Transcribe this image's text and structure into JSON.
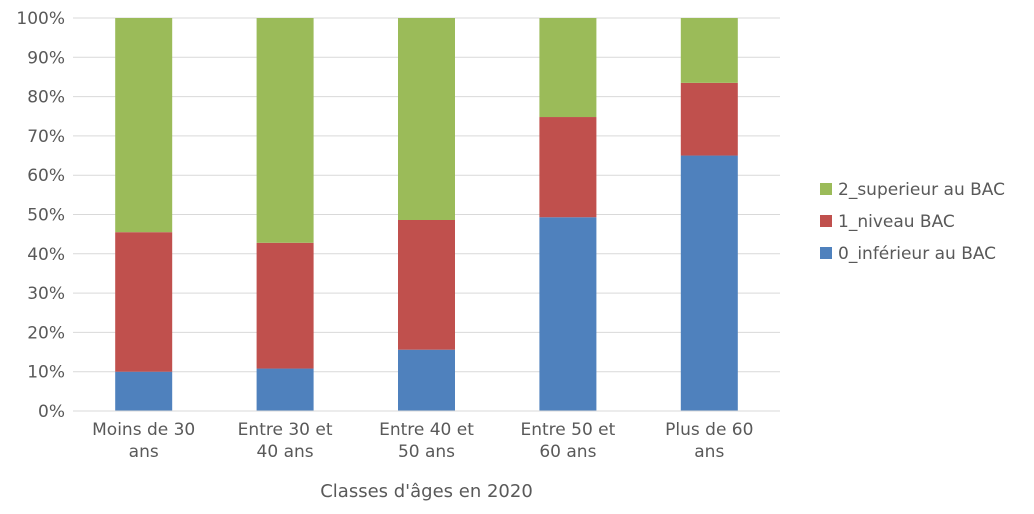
{
  "chart_data": {
    "type": "bar",
    "stacked": true,
    "percent": true,
    "categories": [
      [
        "Moins de 30",
        "ans"
      ],
      [
        "Entre 30 et",
        "40 ans"
      ],
      [
        "Entre 40 et",
        "50 ans"
      ],
      [
        "Entre 50 et",
        "60 ans"
      ],
      [
        "Plus de 60",
        "ans"
      ]
    ],
    "series": [
      {
        "name": "0_inférieur au BAC",
        "color": "#4F81BD",
        "values": [
          10,
          10.8,
          15.6,
          49.3,
          65
        ]
      },
      {
        "name": "1_niveau BAC",
        "color": "#C0504D",
        "values": [
          35.5,
          32,
          33,
          25.5,
          18.5
        ]
      },
      {
        "name": "2_superieur au BAC",
        "color": "#9BBB59",
        "values": [
          54.5,
          57.2,
          51.4,
          25.2,
          16.5
        ]
      }
    ],
    "yticks": [
      "0%",
      "10%",
      "20%",
      "30%",
      "40%",
      "50%",
      "60%",
      "70%",
      "80%",
      "90%",
      "100%"
    ],
    "ylim": [
      0,
      100
    ],
    "xlabel": "Classes d'âges en 2020",
    "ylabel": "",
    "title": "",
    "grid": true,
    "legend_position": "right",
    "legend_order": [
      "2_superieur au BAC",
      "1_niveau BAC",
      "0_inférieur au BAC"
    ]
  }
}
